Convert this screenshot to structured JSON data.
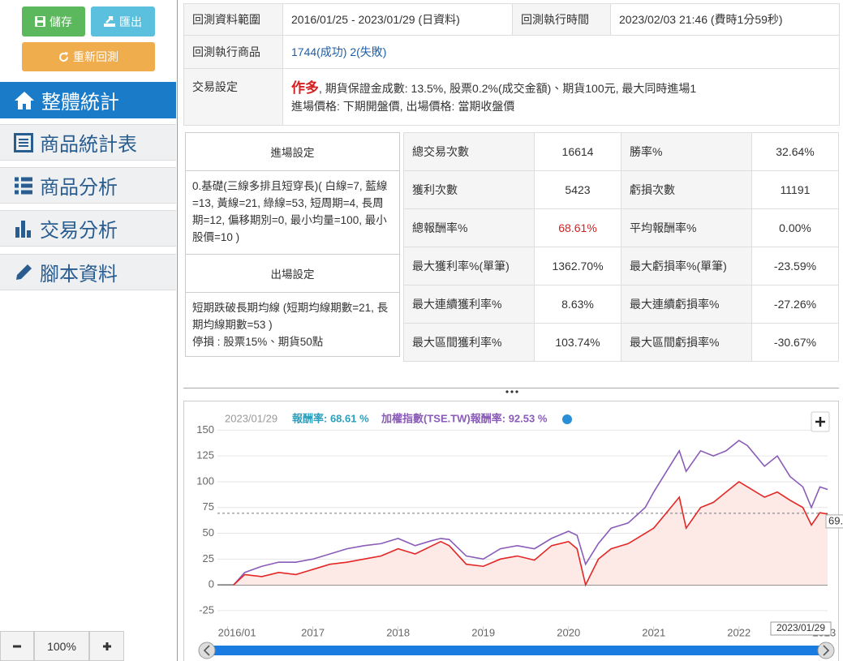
{
  "toolbar": {
    "save": "儲存",
    "export": "匯出",
    "rerun": "重新回測"
  },
  "menu": [
    "整體統計",
    "商品統計表",
    "商品分析",
    "交易分析",
    "腳本資料"
  ],
  "zoom": {
    "level": "100%"
  },
  "info": {
    "range_label": "回測資料範圍",
    "range_value": "2016/01/25 - 2023/01/29 (日資料)",
    "run_label": "回測執行時間",
    "run_value": "2023/02/03 21:46 (費時1分59秒)",
    "products_label": "回測執行商品",
    "products_value": "1744(成功) 2(失敗)",
    "trade_label": "交易設定",
    "direction": "作多",
    "trade_line1": ", 期貨保證金成數: 13.5%, 股票0.2%(成交金額)、期貨100元, 最大同時進場1",
    "trade_line2": "進場價格: 下期開盤價, 出場價格: 當期收盤價"
  },
  "settings": {
    "entry_title": "進場設定",
    "entry_text": "0.基礎(三線多排且短穿長)( 白線=7, 藍線=13, 黃線=21, 綠線=53, 短周期=4, 長周期=12, 偏移期別=0, 最小均量=100, 最小股價=10 )",
    "exit_title": "出場設定",
    "exit_text": [
      "短期跌破長期均線 (短期均線期數=21, 長期均線期數=53 )",
      "停損 : 股票15%、期貨50點"
    ]
  },
  "stats": [
    [
      "總交易次數",
      "16614",
      "勝率%",
      "32.64%"
    ],
    [
      "獲利次數",
      "5423",
      "虧損次數",
      "11191"
    ],
    [
      "總報酬率%",
      "68.61%",
      "平均報酬率%",
      "0.00%"
    ],
    [
      "最大獲利率%(單筆)",
      "1362.70%",
      "最大虧損率%(單筆)",
      "-23.59%"
    ],
    [
      "最大連續獲利率%",
      "8.63%",
      "最大連續虧損率%",
      "-27.26%"
    ],
    [
      "最大區間獲利率%",
      "103.74%",
      "最大區間虧損率%",
      "-30.67%"
    ]
  ],
  "chart_data": {
    "type": "line",
    "legend": [
      "2023/01/29",
      "報酬率: 68.61 %",
      "加權指數(TSE.TW)報酬率: 92.53 %"
    ],
    "legend_colors": [
      "#999999",
      "#2a9fbc",
      "#8a5cb8"
    ],
    "x": [
      2016.07,
      2016.2,
      2016.4,
      2016.6,
      2016.8,
      2017.0,
      2017.2,
      2017.4,
      2017.6,
      2017.8,
      2018.0,
      2018.2,
      2018.4,
      2018.5,
      2018.6,
      2018.8,
      2019.0,
      2019.2,
      2019.4,
      2019.6,
      2019.8,
      2020.0,
      2020.1,
      2020.2,
      2020.35,
      2020.5,
      2020.7,
      2020.9,
      2021.0,
      2021.15,
      2021.3,
      2021.38,
      2021.55,
      2021.7,
      2021.85,
      2022.0,
      2022.1,
      2022.3,
      2022.45,
      2022.6,
      2022.75,
      2022.85,
      2022.95,
      2023.04
    ],
    "series": [
      {
        "color": "#e32626",
        "area_color": "#fde9e6",
        "values": [
          0,
          10,
          8,
          12,
          10,
          15,
          20,
          22,
          25,
          28,
          35,
          30,
          38,
          42,
          38,
          20,
          18,
          25,
          28,
          24,
          38,
          42,
          35,
          0,
          25,
          35,
          40,
          50,
          55,
          70,
          85,
          55,
          75,
          80,
          90,
          100,
          95,
          85,
          90,
          82,
          75,
          58,
          70,
          68.61
        ]
      },
      {
        "color": "#8a5cb8",
        "values": [
          0,
          12,
          18,
          22,
          22,
          25,
          30,
          35,
          38,
          40,
          45,
          38,
          43,
          45,
          44,
          28,
          25,
          35,
          38,
          35,
          45,
          52,
          48,
          20,
          40,
          55,
          60,
          75,
          90,
          110,
          130,
          110,
          130,
          125,
          130,
          140,
          135,
          115,
          125,
          105,
          95,
          75,
          95,
          92.53
        ]
      }
    ],
    "xlim": [
      2015.88,
      2023.04
    ],
    "xticks": [
      {
        "value": 2016,
        "label": "2016/01"
      },
      2017,
      2018,
      2019,
      2020,
      2021,
      2022,
      2023
    ],
    "ylim": [
      -40,
      155
    ],
    "yticks": [
      -25,
      0,
      25,
      50,
      75,
      100,
      125,
      150
    ],
    "grid": true,
    "ref_line": 69.37,
    "navigator_label": "2023/01/29"
  }
}
